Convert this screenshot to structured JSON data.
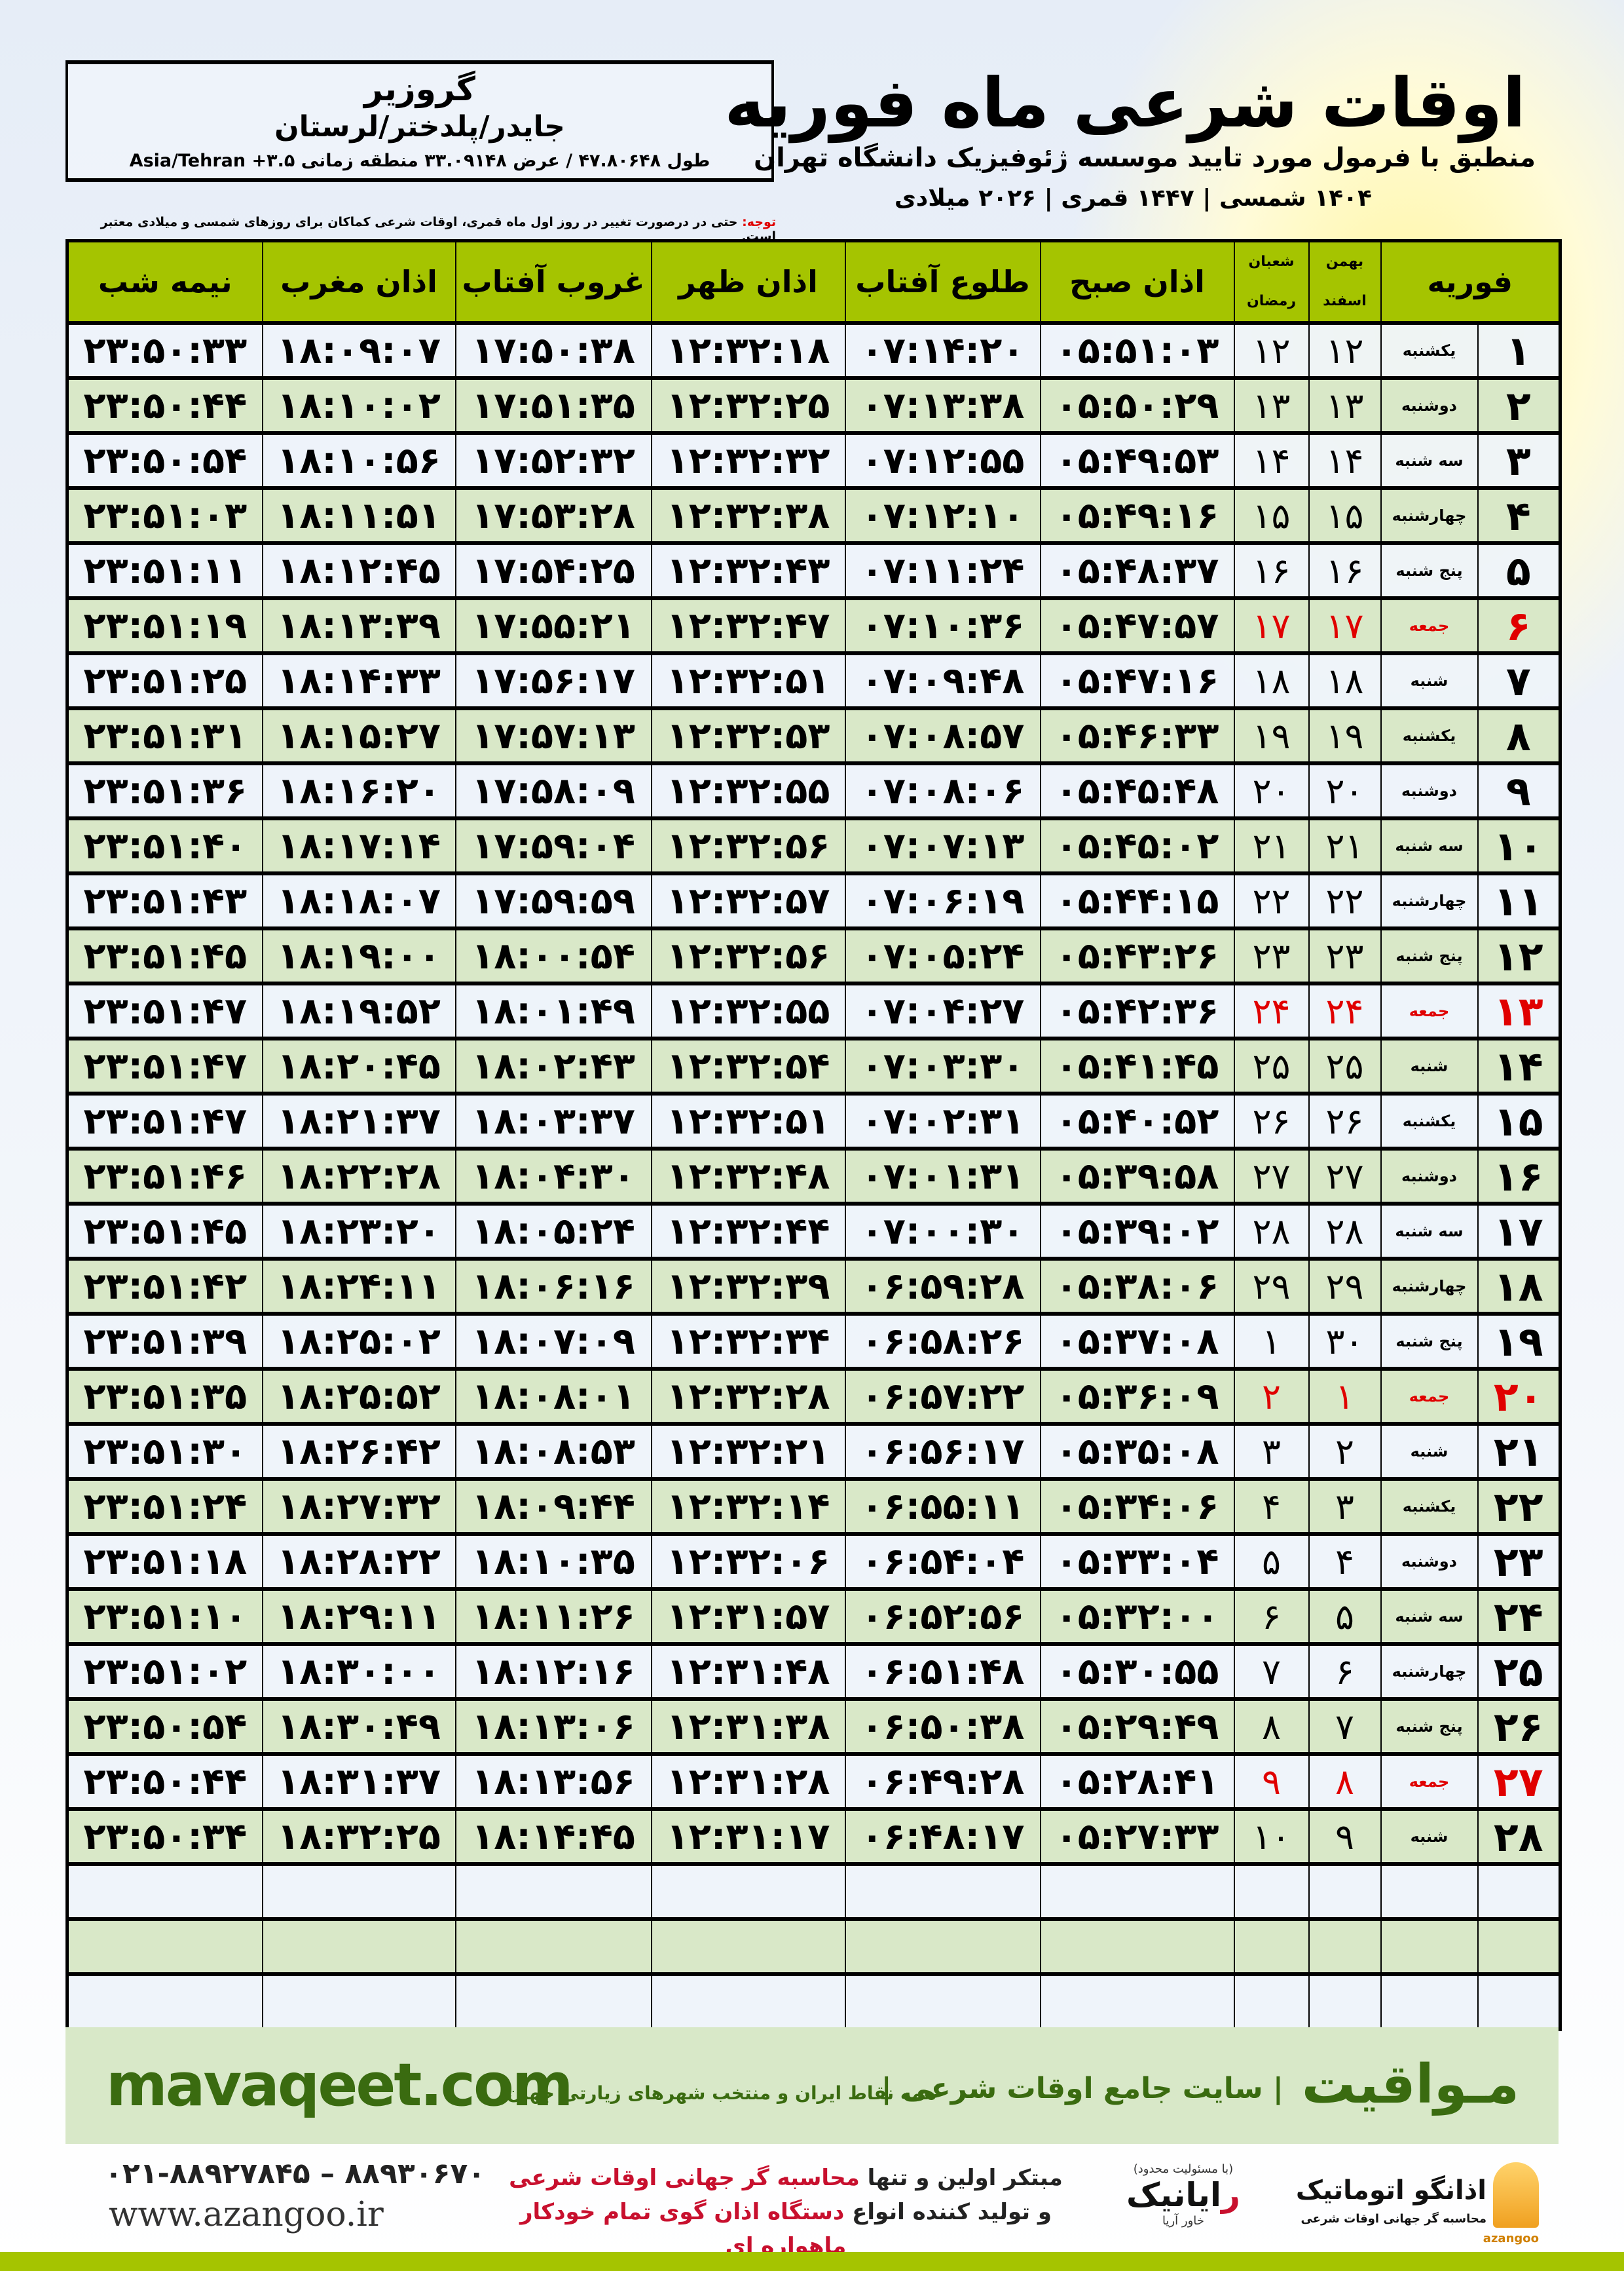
{
  "header": {
    "title": "اوقات شرعی ماه فوریه",
    "subtitle": "منطبق با فرمول مورد تایید موسسه ژئوفیزیک دانشگاه تهران",
    "years": "۱۴۰۴ شمسی | ۱۴۴۷ قمری | ۲۰۲۶ میلادی",
    "city": "گروزیر",
    "region": "جایدر/پلدختر/لرستان",
    "coords": "طول ۴۷.۸۰۶۴۸ / عرض ۳۳.۰۹۱۴۸ منطقه زمانی ۳.۵+ Asia/Tehran",
    "note_label": "توجه:",
    "note": " حتی در درصورت تغییر در روز اول ماه قمری، اوقات شرعی کماکان برای روزهای شمسی و میلادی معتبر است."
  },
  "table": {
    "columns": {
      "month": "فوریه",
      "solar_top": "بهمن",
      "solar_bottom": "اسفند",
      "lunar_top": "شعبان",
      "lunar_bottom": "رمضان",
      "fajr": "اذان صبح",
      "sunrise": "طلوع آفتاب",
      "dhuhr": "اذان ظهر",
      "sunset": "غروب آفتاب",
      "maghrib": "اذان مغرب",
      "midnight": "نیمه شب"
    },
    "rows": [
      [
        "۱",
        "یکشنبه",
        "۱۲",
        "۱۲",
        "۰۵:۵۱:۰۳",
        "۰۷:۱۴:۲۰",
        "۱۲:۳۲:۱۸",
        "۱۷:۵۰:۳۸",
        "۱۸:۰۹:۰۷",
        "۲۳:۵۰:۳۳",
        false
      ],
      [
        "۲",
        "دوشنبه",
        "۱۳",
        "۱۳",
        "۰۵:۵۰:۲۹",
        "۰۷:۱۳:۳۸",
        "۱۲:۳۲:۲۵",
        "۱۷:۵۱:۳۵",
        "۱۸:۱۰:۰۲",
        "۲۳:۵۰:۴۴",
        false
      ],
      [
        "۳",
        "سه شنبه",
        "۱۴",
        "۱۴",
        "۰۵:۴۹:۵۳",
        "۰۷:۱۲:۵۵",
        "۱۲:۳۲:۳۲",
        "۱۷:۵۲:۳۲",
        "۱۸:۱۰:۵۶",
        "۲۳:۵۰:۵۴",
        false
      ],
      [
        "۴",
        "چهارشنبه",
        "۱۵",
        "۱۵",
        "۰۵:۴۹:۱۶",
        "۰۷:۱۲:۱۰",
        "۱۲:۳۲:۳۸",
        "۱۷:۵۳:۲۸",
        "۱۸:۱۱:۵۱",
        "۲۳:۵۱:۰۳",
        false
      ],
      [
        "۵",
        "پنج شنبه",
        "۱۶",
        "۱۶",
        "۰۵:۴۸:۳۷",
        "۰۷:۱۱:۲۴",
        "۱۲:۳۲:۴۳",
        "۱۷:۵۴:۲۵",
        "۱۸:۱۲:۴۵",
        "۲۳:۵۱:۱۱",
        false
      ],
      [
        "۶",
        "جمعه",
        "۱۷",
        "۱۷",
        "۰۵:۴۷:۵۷",
        "۰۷:۱۰:۳۶",
        "۱۲:۳۲:۴۷",
        "۱۷:۵۵:۲۱",
        "۱۸:۱۳:۳۹",
        "۲۳:۵۱:۱۹",
        true
      ],
      [
        "۷",
        "شنبه",
        "۱۸",
        "۱۸",
        "۰۵:۴۷:۱۶",
        "۰۷:۰۹:۴۸",
        "۱۲:۳۲:۵۱",
        "۱۷:۵۶:۱۷",
        "۱۸:۱۴:۳۳",
        "۲۳:۵۱:۲۵",
        false
      ],
      [
        "۸",
        "یکشنبه",
        "۱۹",
        "۱۹",
        "۰۵:۴۶:۳۳",
        "۰۷:۰۸:۵۷",
        "۱۲:۳۲:۵۳",
        "۱۷:۵۷:۱۳",
        "۱۸:۱۵:۲۷",
        "۲۳:۵۱:۳۱",
        false
      ],
      [
        "۹",
        "دوشنبه",
        "۲۰",
        "۲۰",
        "۰۵:۴۵:۴۸",
        "۰۷:۰۸:۰۶",
        "۱۲:۳۲:۵۵",
        "۱۷:۵۸:۰۹",
        "۱۸:۱۶:۲۰",
        "۲۳:۵۱:۳۶",
        false
      ],
      [
        "۱۰",
        "سه شنبه",
        "۲۱",
        "۲۱",
        "۰۵:۴۵:۰۲",
        "۰۷:۰۷:۱۳",
        "۱۲:۳۲:۵۶",
        "۱۷:۵۹:۰۴",
        "۱۸:۱۷:۱۴",
        "۲۳:۵۱:۴۰",
        false
      ],
      [
        "۱۱",
        "چهارشنبه",
        "۲۲",
        "۲۲",
        "۰۵:۴۴:۱۵",
        "۰۷:۰۶:۱۹",
        "۱۲:۳۲:۵۷",
        "۱۷:۵۹:۵۹",
        "۱۸:۱۸:۰۷",
        "۲۳:۵۱:۴۳",
        false
      ],
      [
        "۱۲",
        "پنج شنبه",
        "۲۳",
        "۲۳",
        "۰۵:۴۳:۲۶",
        "۰۷:۰۵:۲۴",
        "۱۲:۳۲:۵۶",
        "۱۸:۰۰:۵۴",
        "۱۸:۱۹:۰۰",
        "۲۳:۵۱:۴۵",
        false
      ],
      [
        "۱۳",
        "جمعه",
        "۲۴",
        "۲۴",
        "۰۵:۴۲:۳۶",
        "۰۷:۰۴:۲۷",
        "۱۲:۳۲:۵۵",
        "۱۸:۰۱:۴۹",
        "۱۸:۱۹:۵۲",
        "۲۳:۵۱:۴۷",
        true
      ],
      [
        "۱۴",
        "شنبه",
        "۲۵",
        "۲۵",
        "۰۵:۴۱:۴۵",
        "۰۷:۰۳:۳۰",
        "۱۲:۳۲:۵۴",
        "۱۸:۰۲:۴۳",
        "۱۸:۲۰:۴۵",
        "۲۳:۵۱:۴۷",
        false
      ],
      [
        "۱۵",
        "یکشنبه",
        "۲۶",
        "۲۶",
        "۰۵:۴۰:۵۲",
        "۰۷:۰۲:۳۱",
        "۱۲:۳۲:۵۱",
        "۱۸:۰۳:۳۷",
        "۱۸:۲۱:۳۷",
        "۲۳:۵۱:۴۷",
        false
      ],
      [
        "۱۶",
        "دوشنبه",
        "۲۷",
        "۲۷",
        "۰۵:۳۹:۵۸",
        "۰۷:۰۱:۳۱",
        "۱۲:۳۲:۴۸",
        "۱۸:۰۴:۳۰",
        "۱۸:۲۲:۲۸",
        "۲۳:۵۱:۴۶",
        false
      ],
      [
        "۱۷",
        "سه شنبه",
        "۲۸",
        "۲۸",
        "۰۵:۳۹:۰۲",
        "۰۷:۰۰:۳۰",
        "۱۲:۳۲:۴۴",
        "۱۸:۰۵:۲۴",
        "۱۸:۲۳:۲۰",
        "۲۳:۵۱:۴۵",
        false
      ],
      [
        "۱۸",
        "چهارشنبه",
        "۲۹",
        "۲۹",
        "۰۵:۳۸:۰۶",
        "۰۶:۵۹:۲۸",
        "۱۲:۳۲:۳۹",
        "۱۸:۰۶:۱۶",
        "۱۸:۲۴:۱۱",
        "۲۳:۵۱:۴۲",
        false
      ],
      [
        "۱۹",
        "پنج شنبه",
        "۳۰",
        "۱",
        "۰۵:۳۷:۰۸",
        "۰۶:۵۸:۲۶",
        "۱۲:۳۲:۳۴",
        "۱۸:۰۷:۰۹",
        "۱۸:۲۵:۰۲",
        "۲۳:۵۱:۳۹",
        false
      ],
      [
        "۲۰",
        "جمعه",
        "۱",
        "۲",
        "۰۵:۳۶:۰۹",
        "۰۶:۵۷:۲۲",
        "۱۲:۳۲:۲۸",
        "۱۸:۰۸:۰۱",
        "۱۸:۲۵:۵۲",
        "۲۳:۵۱:۳۵",
        true
      ],
      [
        "۲۱",
        "شنبه",
        "۲",
        "۳",
        "۰۵:۳۵:۰۸",
        "۰۶:۵۶:۱۷",
        "۱۲:۳۲:۲۱",
        "۱۸:۰۸:۵۳",
        "۱۸:۲۶:۴۲",
        "۲۳:۵۱:۳۰",
        false
      ],
      [
        "۲۲",
        "یکشنبه",
        "۳",
        "۴",
        "۰۵:۳۴:۰۶",
        "۰۶:۵۵:۱۱",
        "۱۲:۳۲:۱۴",
        "۱۸:۰۹:۴۴",
        "۱۸:۲۷:۳۲",
        "۲۳:۵۱:۲۴",
        false
      ],
      [
        "۲۳",
        "دوشنبه",
        "۴",
        "۵",
        "۰۵:۳۳:۰۴",
        "۰۶:۵۴:۰۴",
        "۱۲:۳۲:۰۶",
        "۱۸:۱۰:۳۵",
        "۱۸:۲۸:۲۲",
        "۲۳:۵۱:۱۸",
        false
      ],
      [
        "۲۴",
        "سه شنبه",
        "۵",
        "۶",
        "۰۵:۳۲:۰۰",
        "۰۶:۵۲:۵۶",
        "۱۲:۳۱:۵۷",
        "۱۸:۱۱:۲۶",
        "۱۸:۲۹:۱۱",
        "۲۳:۵۱:۱۰",
        false
      ],
      [
        "۲۵",
        "چهارشنبه",
        "۶",
        "۷",
        "۰۵:۳۰:۵۵",
        "۰۶:۵۱:۴۸",
        "۱۲:۳۱:۴۸",
        "۱۸:۱۲:۱۶",
        "۱۸:۳۰:۰۰",
        "۲۳:۵۱:۰۲",
        false
      ],
      [
        "۲۶",
        "پنج شنبه",
        "۷",
        "۸",
        "۰۵:۲۹:۴۹",
        "۰۶:۵۰:۳۸",
        "۱۲:۳۱:۳۸",
        "۱۸:۱۳:۰۶",
        "۱۸:۳۰:۴۹",
        "۲۳:۵۰:۵۴",
        false
      ],
      [
        "۲۷",
        "جمعه",
        "۸",
        "۹",
        "۰۵:۲۸:۴۱",
        "۰۶:۴۹:۲۸",
        "۱۲:۳۱:۲۸",
        "۱۸:۱۳:۵۶",
        "۱۸:۳۱:۳۷",
        "۲۳:۵۰:۴۴",
        true
      ],
      [
        "۲۸",
        "شنبه",
        "۹",
        "۱۰",
        "۰۵:۲۷:۳۳",
        "۰۶:۴۸:۱۷",
        "۱۲:۳۱:۱۷",
        "۱۸:۱۴:۴۵",
        "۱۸:۳۲:۲۵",
        "۲۳:۵۰:۳۴",
        false
      ]
    ]
  },
  "footer": {
    "brand": "مـواقیت",
    "tagline": "| سایت جامع اوقات شرعی |",
    "tagline2": "همه نقاط ایران و منتخب شهرهای زیارتی جهان",
    "site": "mavaqeet.com",
    "phone": "۰۲۱-۸۸۹۲۷۸۴۵ – ۸۸۹۳۰۶۷۰",
    "web": "www.azangoo.ir",
    "promo1_a": "مبتکر اولین و تنها ",
    "promo1_b": "محاسبه گر جهانی اوقات شرعی",
    "promo2_a": "و تولید کننده انواع ",
    "promo2_b": "دستگاه اذان گوی تمام خودکار ماهواره ای",
    "logo1_note": "(با مسئولیت محدود)",
    "logo1_r": "ر",
    "logo1_name": "ایانیک",
    "logo1_sub": "خاور آریا",
    "logo2_name": "اذانگو اتوماتیک",
    "logo2_sub": "محاسبه گر جهانی اوقات شرعی",
    "logo2_latin": "azangoo"
  },
  "colors": {
    "header_green": "#a5c400",
    "row_green": "#d9e8c8",
    "holiday_red": "#e00000",
    "brand_green": "#3a6b10"
  }
}
